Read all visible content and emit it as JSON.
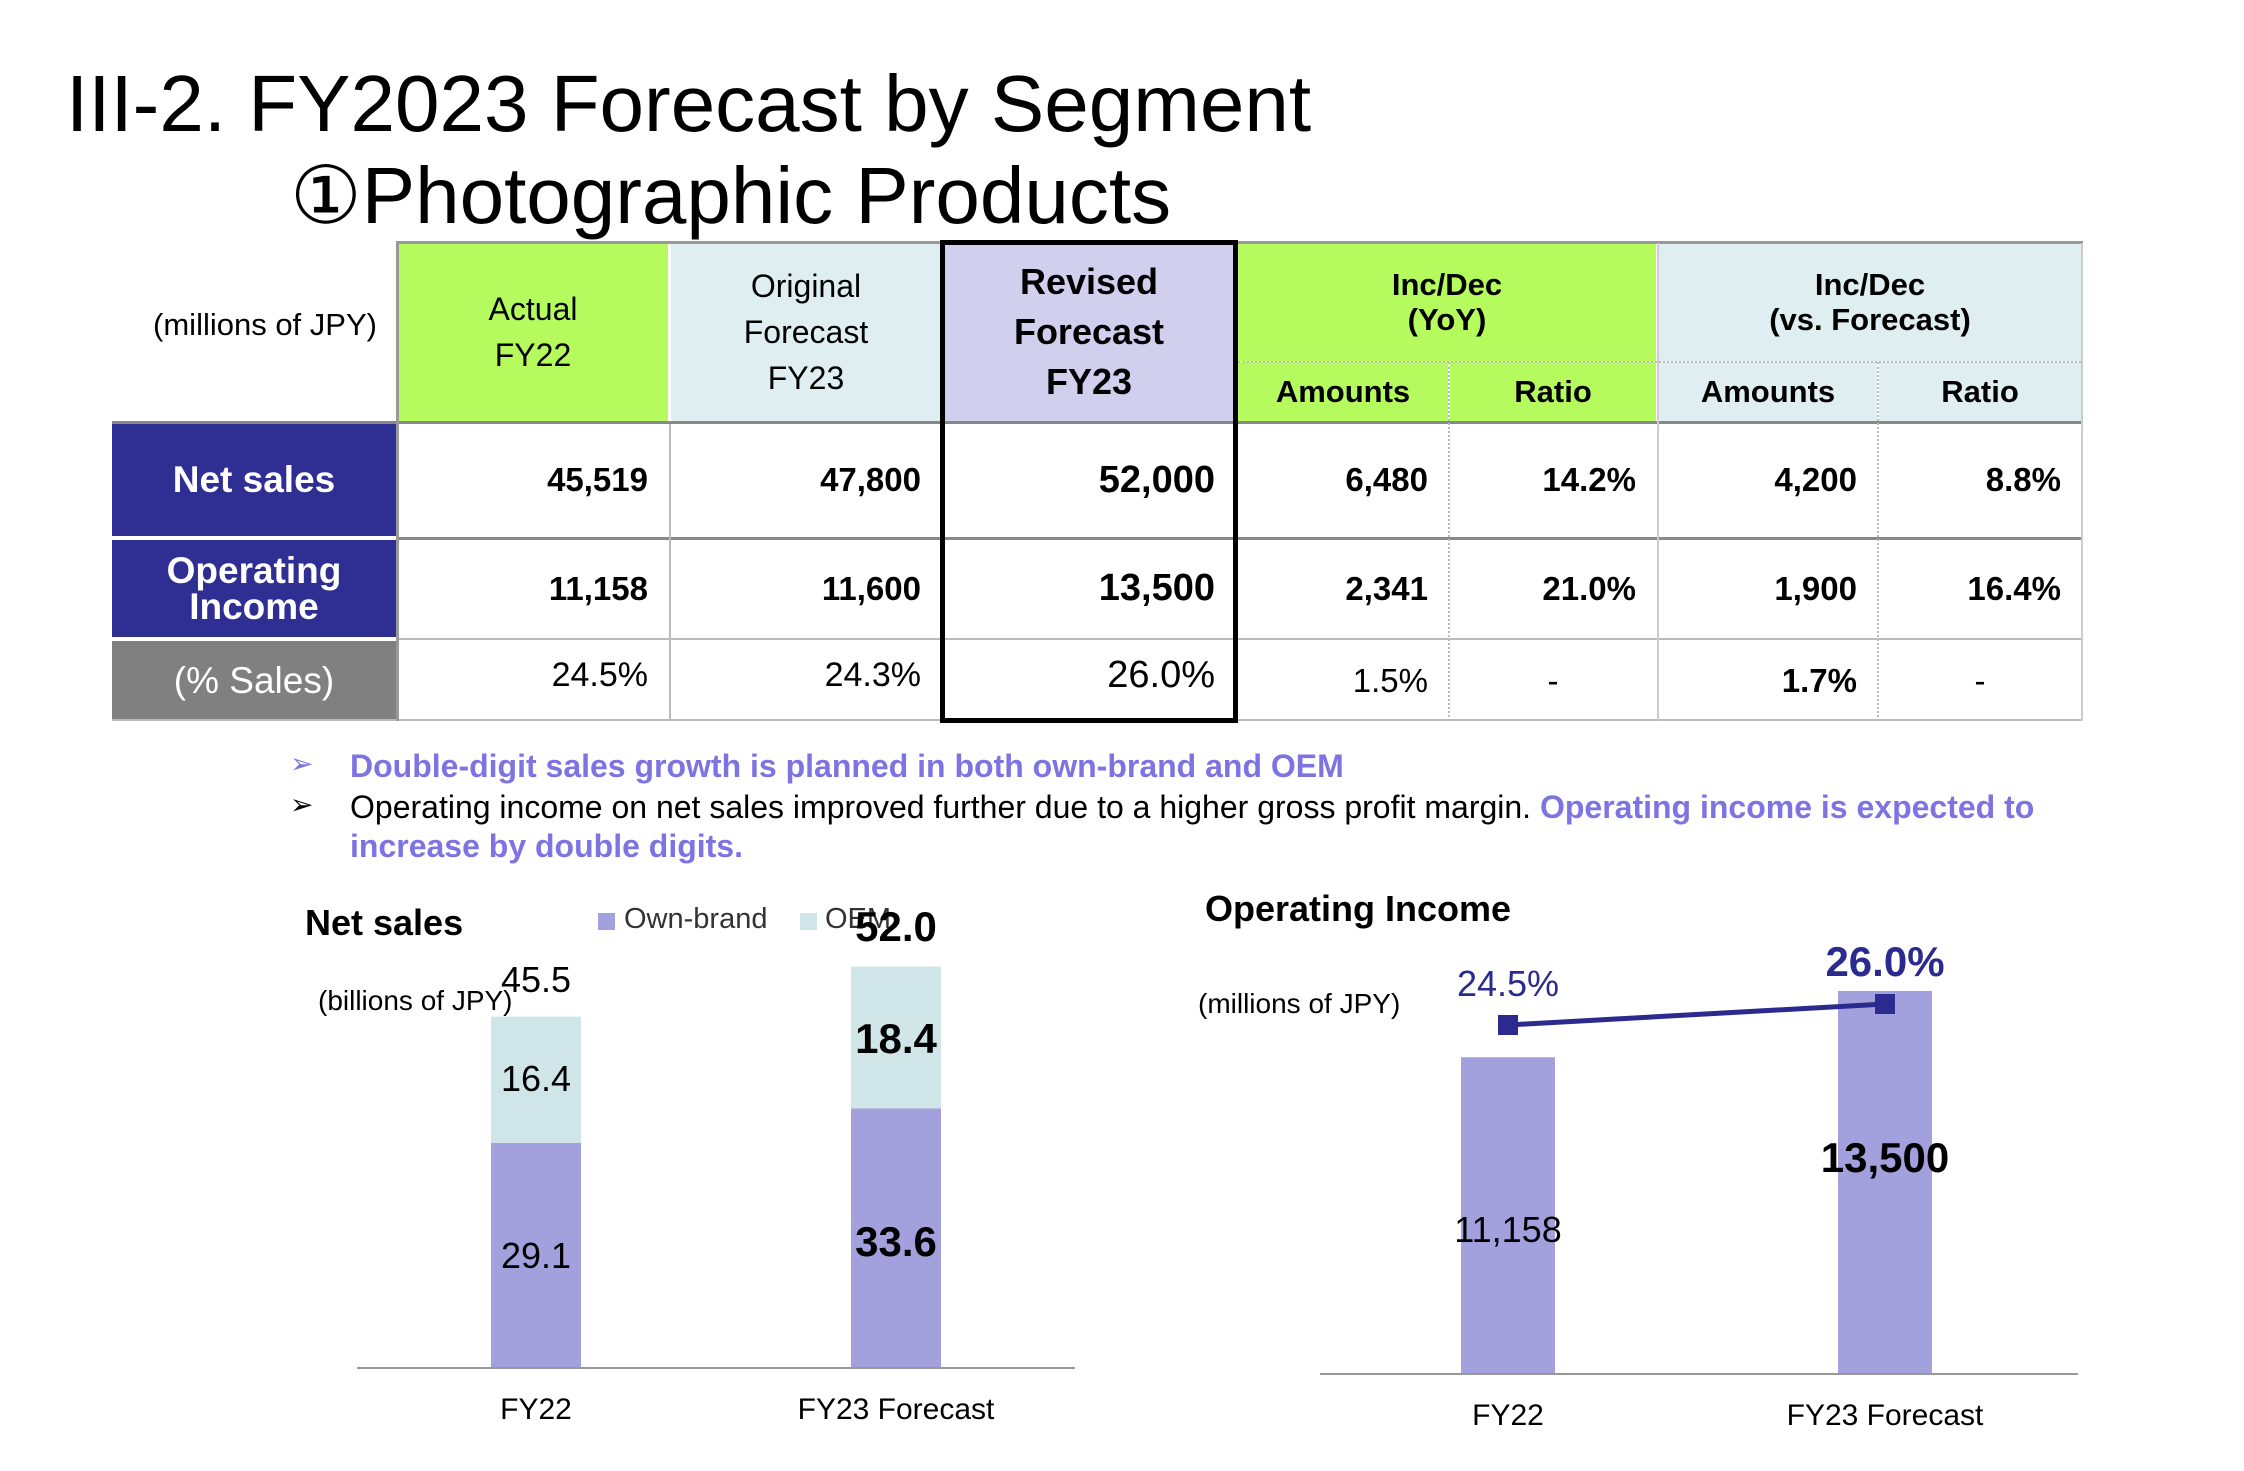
{
  "title": "III-2. FY2023 Forecast by Segment",
  "subtitle": "①Photographic Products",
  "colors": {
    "green": "#b5fb5e",
    "light_blue": "#dfeef0",
    "lavender": "#d0cfee",
    "navy": "#2f2e93",
    "gray": "#808080",
    "bar": "#a3a1dd",
    "oem": "#cfe5e8",
    "purple": "#7d73e3",
    "line": "#2b2a8e"
  },
  "table": {
    "unit": "(millions of JPY)",
    "headers": {
      "actual": [
        "Actual",
        "FY22"
      ],
      "original": [
        "Original",
        "Forecast",
        "FY23"
      ],
      "revised": [
        "Revised",
        "Forecast",
        "FY23"
      ],
      "yoy": [
        "Inc/Dec",
        "(YoY)"
      ],
      "vs_forecast": [
        "Inc/Dec",
        "(vs. Forecast)"
      ],
      "amounts": "Amounts",
      "ratio": "Ratio"
    },
    "rows": [
      {
        "label": "Net sales",
        "actual": "45,519",
        "original": "47,800",
        "revised": "52,000",
        "yoy_amount": "6,480",
        "yoy_ratio": "14.2%",
        "fc_amount": "4,200",
        "fc_ratio": "8.8%"
      },
      {
        "label_lines": [
          "Operating",
          "Income"
        ],
        "actual": "11,158",
        "original": "11,600",
        "revised": "13,500",
        "yoy_amount": "2,341",
        "yoy_ratio": "21.0%",
        "fc_amount": "1,900",
        "fc_ratio": "16.4%"
      },
      {
        "label": "(% Sales)",
        "actual": "24.5%",
        "original": "24.3%",
        "revised": "26.0%",
        "yoy_amount": "1.5%",
        "yoy_ratio": "-",
        "fc_amount": "1.7%",
        "fc_ratio": "-"
      }
    ]
  },
  "bullets": {
    "b1": "Double-digit sales growth is planned in both own-brand and OEM",
    "b2_plain": "Operating income on net sales improved further due to a higher gross profit margin. ",
    "b2_highlight_1": "Operating income is expected to",
    "b2_highlight_2": "increase by double digits."
  },
  "chart_data": [
    {
      "type": "bar",
      "stacked": true,
      "title": "Net sales",
      "unit": "(billions of JPY)",
      "categories": [
        "FY22",
        "FY23 Forecast"
      ],
      "series": [
        {
          "name": "Own-brand",
          "values": [
            29.1,
            33.6
          ],
          "labels": [
            "29.1",
            "33.6"
          ]
        },
        {
          "name": "OEM",
          "values": [
            16.4,
            18.4
          ],
          "labels": [
            "16.4",
            "18.4"
          ]
        }
      ],
      "totals": [
        "45.5",
        "52.0"
      ],
      "legend": [
        "Own-brand",
        "OEM"
      ],
      "legend_position": "top",
      "ylim": [
        0,
        60
      ]
    },
    {
      "type": "bar",
      "title": "Operating Income",
      "unit": "(millions of JPY)",
      "categories": [
        "FY22",
        "FY23 Forecast"
      ],
      "values": [
        11158,
        13500
      ],
      "labels": [
        "11,158",
        "13,500"
      ],
      "ylim": [
        0,
        16500
      ],
      "line_series": {
        "name": "% Sales",
        "values": [
          24.5,
          26.0
        ],
        "labels": [
          "24.5%",
          "26.0%"
        ],
        "ylim": [
          20,
          30
        ]
      }
    }
  ]
}
